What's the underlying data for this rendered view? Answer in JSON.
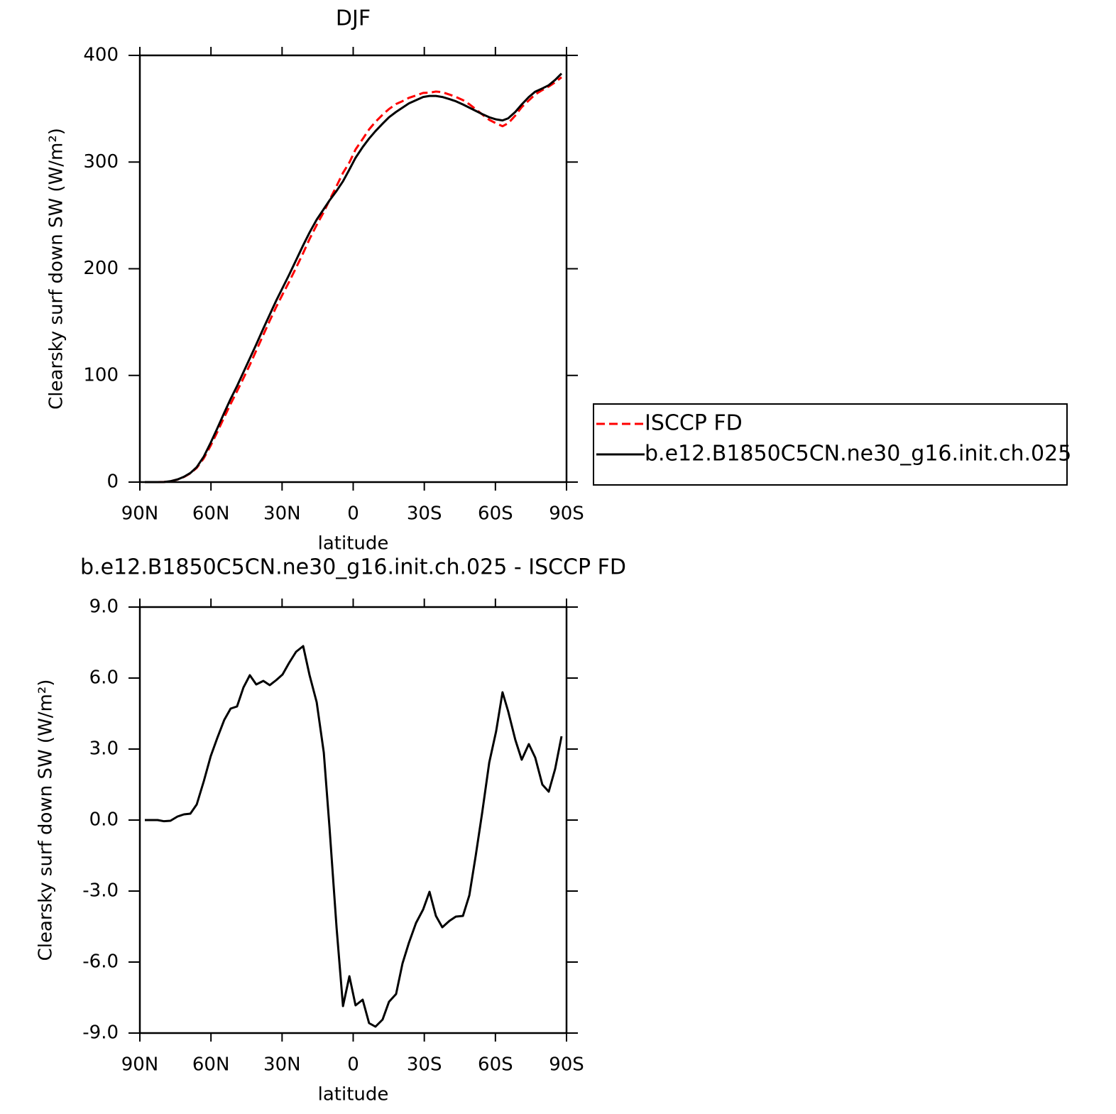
{
  "chart_data": [
    {
      "type": "line",
      "title": "DJF",
      "xlabel": "latitude",
      "ylabel": "Clearsky surf down SW (W/m²)",
      "xlim": [
        90,
        -90
      ],
      "ylim": [
        0,
        400
      ],
      "xticks": [
        {
          "value": 90,
          "label": "90N"
        },
        {
          "value": 60,
          "label": "60N"
        },
        {
          "value": 30,
          "label": "30N"
        },
        0,
        {
          "value": -30,
          "label": "30S"
        },
        {
          "value": -60,
          "label": "60S"
        },
        {
          "value": -90,
          "label": "90S"
        }
      ],
      "yticks": [
        0,
        100,
        200,
        300,
        400
      ],
      "legend": "right",
      "x": [
        87.9,
        82.5,
        79.8,
        77.1,
        74.1,
        71.4,
        68.7,
        66,
        63,
        60.1,
        57.4,
        54.4,
        51.7,
        49,
        46.3,
        43.6,
        40.9,
        37.9,
        35.2,
        32.5,
        29.8,
        27.1,
        24.1,
        21.1,
        18.4,
        15.4,
        12.4,
        10,
        7,
        4.3,
        1.6,
        -1,
        -4,
        -6.7,
        -9.4,
        -12.4,
        -15.1,
        -18.1,
        -20.8,
        -23.5,
        -26.5,
        -29.5,
        -32.2,
        -34.9,
        -37.6,
        -40.6,
        -43.3,
        -46.3,
        -49,
        -51.7,
        -54.4,
        -57.4,
        -60.3,
        -63,
        -65.4,
        -68.4,
        -71.1,
        -74.1,
        -76.8,
        -79.8,
        -82.5,
        -85.2,
        -87.9
      ],
      "series": [
        {
          "name": "ISCCP FD",
          "color": "#ff0000",
          "line_style": "dashed",
          "values": [
            0,
            0,
            0.2,
            0.8,
            2.4,
            4.8,
            8.2,
            13.3,
            22.4,
            34.3,
            46.6,
            60.8,
            73.3,
            85.2,
            97.4,
            109.9,
            123.3,
            138.1,
            151.3,
            164.1,
            175.9,
            187.4,
            200.9,
            214.7,
            227.9,
            241.0,
            253.2,
            264.3,
            277.6,
            289.9,
            299.6,
            311.8,
            321.6,
            330.6,
            337.7,
            344.4,
            349.7,
            354.4,
            357.1,
            360.2,
            362.4,
            364.8,
            365.0,
            366.1,
            365.5,
            363.3,
            361.1,
            358.1,
            354.2,
            349.5,
            344.7,
            339.6,
            336.3,
            333.6,
            336.4,
            343.6,
            351.5,
            357.8,
            363.4,
            367.5,
            370.8,
            374.8,
            379.5
          ]
        },
        {
          "name": "b.e12.B1850C5CN.ne30_g16.init.ch.025",
          "color": "#000000",
          "line_style": "solid",
          "values": [
            0,
            0,
            0.1,
            0.8,
            2.5,
            5,
            8.5,
            14,
            24,
            37,
            50,
            65,
            78,
            90,
            103,
            116,
            129,
            144,
            157,
            170,
            182,
            194,
            208,
            222,
            234,
            246,
            256,
            264,
            273,
            282,
            293,
            304,
            314,
            322,
            329,
            336,
            342,
            347,
            351,
            355,
            358,
            361,
            362,
            362,
            361,
            359,
            357,
            354,
            351,
            348,
            345,
            342,
            340,
            339,
            341,
            347,
            354,
            361,
            366,
            369,
            372,
            377,
            383
          ]
        }
      ]
    },
    {
      "type": "line",
      "title": "b.e12.B1850C5CN.ne30_g16.init.ch.025 - ISCCP FD",
      "xlabel": "latitude",
      "ylabel": "Clearsky surf down SW (W/m²)",
      "xlim": [
        90,
        -90
      ],
      "ylim": [
        -9,
        9
      ],
      "xticks": [
        {
          "value": 90,
          "label": "90N"
        },
        {
          "value": 60,
          "label": "60N"
        },
        {
          "value": 30,
          "label": "30N"
        },
        0,
        {
          "value": -30,
          "label": "30S"
        },
        {
          "value": -60,
          "label": "60S"
        },
        {
          "value": -90,
          "label": "90S"
        }
      ],
      "yticks": [
        {
          "value": -9,
          "label": "-9.0"
        },
        {
          "value": -6,
          "label": "-6.0"
        },
        {
          "value": -3,
          "label": "-3.0"
        },
        {
          "value": 0,
          "label": "0.0"
        },
        {
          "value": 3,
          "label": "3.0"
        },
        {
          "value": 6,
          "label": "6.0"
        },
        {
          "value": 9,
          "label": "9.0"
        }
      ],
      "x": [
        87.9,
        82.5,
        79.8,
        77.1,
        74.1,
        71.4,
        68.7,
        66,
        63,
        60.1,
        57.4,
        54.4,
        51.7,
        49,
        46.3,
        43.6,
        40.9,
        37.9,
        35.2,
        32.5,
        29.8,
        27.1,
        24.1,
        21.1,
        18.4,
        15.4,
        12.4,
        10,
        7,
        4.3,
        1.6,
        -1,
        -4,
        -6.7,
        -9.4,
        -12.4,
        -15.1,
        -18.1,
        -20.8,
        -23.5,
        -26.5,
        -29.5,
        -32.2,
        -34.9,
        -37.6,
        -40.6,
        -43.3,
        -46.3,
        -49,
        -51.7,
        -54.4,
        -57.4,
        -60.3,
        -63,
        -65.4,
        -68.4,
        -71.1,
        -74.1,
        -76.8,
        -79.8,
        -82.5,
        -85.2,
        -87.9
      ],
      "series": [
        {
          "color": "#000000",
          "line_style": "solid",
          "values": [
            0,
            0,
            -0.05,
            -0.03,
            0.15,
            0.24,
            0.27,
            0.66,
            1.65,
            2.7,
            3.45,
            4.23,
            4.71,
            4.8,
            5.6,
            6.12,
            5.73,
            5.88,
            5.7,
            5.91,
            6.15,
            6.63,
            7.11,
            7.35,
            6.12,
            4.98,
            2.85,
            -0.3,
            -4.56,
            -7.86,
            -6.6,
            -7.83,
            -7.59,
            -8.58,
            -8.73,
            -8.43,
            -7.68,
            -7.35,
            -6.06,
            -5.19,
            -4.35,
            -3.78,
            -3.03,
            -4.05,
            -4.53,
            -4.26,
            -4.08,
            -4.05,
            -3.18,
            -1.5,
            0.3,
            2.43,
            3.75,
            5.4,
            4.59,
            3.39,
            2.55,
            3.21,
            2.64,
            1.5,
            1.2,
            2.16,
            3.54
          ]
        }
      ]
    }
  ]
}
